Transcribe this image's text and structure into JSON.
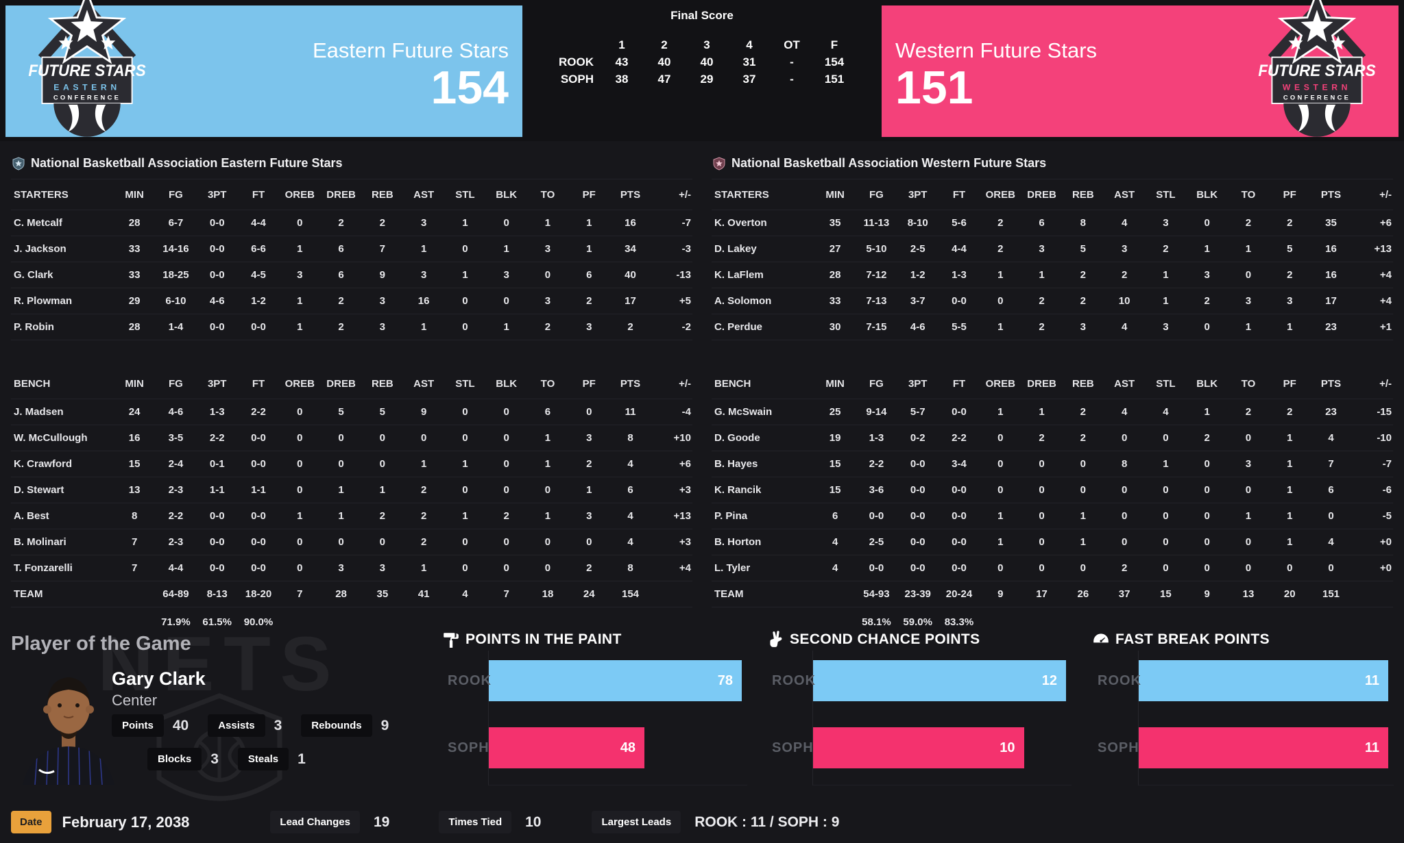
{
  "header": {
    "east": {
      "name": "Eastern Future Stars",
      "score": "154",
      "logo": {
        "line1": "FUTURE STARS",
        "line2": "EASTERN",
        "line3": "CONFERENCE"
      }
    },
    "west": {
      "name": "Western Future Stars",
      "score": "151",
      "logo": {
        "line1": "FUTURE STARS",
        "line2": "WESTERN",
        "line3": "CONFERENCE"
      }
    },
    "final_score": {
      "title": "Final Score",
      "columns": [
        "1",
        "2",
        "3",
        "4",
        "OT",
        "F"
      ],
      "rows": [
        {
          "team": "ROOK",
          "values": [
            "43",
            "40",
            "40",
            "31",
            "-",
            "154"
          ]
        },
        {
          "team": "SOPH",
          "values": [
            "38",
            "47",
            "29",
            "37",
            "-",
            "151"
          ]
        }
      ]
    }
  },
  "colors": {
    "east_primary": "#7cc4ec",
    "west_primary": "#f4417a",
    "east_bar": "#7ccaf5",
    "west_bar": "#f4326e",
    "date_badge": "#e9a13b"
  },
  "boxscores": [
    {
      "title": "National Basketball Association Eastern Future Stars",
      "groups": [
        "STARTERS",
        "BENCH"
      ],
      "columns": [
        "MIN",
        "FG",
        "3PT",
        "FT",
        "OREB",
        "DREB",
        "REB",
        "AST",
        "STL",
        "BLK",
        "TO",
        "PF",
        "PTS",
        "+/-"
      ],
      "starters": [
        {
          "name": "C. Metcalf",
          "cells": [
            "28",
            "6-7",
            "0-0",
            "4-4",
            "0",
            "2",
            "2",
            "3",
            "1",
            "0",
            "1",
            "1",
            "16",
            "-7"
          ]
        },
        {
          "name": "J. Jackson",
          "cells": [
            "33",
            "14-16",
            "0-0",
            "6-6",
            "1",
            "6",
            "7",
            "1",
            "0",
            "1",
            "3",
            "1",
            "34",
            "-3"
          ]
        },
        {
          "name": "G. Clark",
          "cells": [
            "33",
            "18-25",
            "0-0",
            "4-5",
            "3",
            "6",
            "9",
            "3",
            "1",
            "3",
            "0",
            "6",
            "40",
            "-13"
          ]
        },
        {
          "name": "R. Plowman",
          "cells": [
            "29",
            "6-10",
            "4-6",
            "1-2",
            "1",
            "2",
            "3",
            "16",
            "0",
            "0",
            "3",
            "2",
            "17",
            "+5"
          ]
        },
        {
          "name": "P. Robin",
          "cells": [
            "28",
            "1-4",
            "0-0",
            "0-0",
            "1",
            "2",
            "3",
            "1",
            "0",
            "1",
            "2",
            "3",
            "2",
            "-2"
          ]
        }
      ],
      "bench": [
        {
          "name": "J. Madsen",
          "cells": [
            "24",
            "4-6",
            "1-3",
            "2-2",
            "0",
            "5",
            "5",
            "9",
            "0",
            "0",
            "6",
            "0",
            "11",
            "-4"
          ]
        },
        {
          "name": "W. McCullough",
          "cells": [
            "16",
            "3-5",
            "2-2",
            "0-0",
            "0",
            "0",
            "0",
            "0",
            "0",
            "0",
            "1",
            "3",
            "8",
            "+10"
          ]
        },
        {
          "name": "K. Crawford",
          "cells": [
            "15",
            "2-4",
            "0-1",
            "0-0",
            "0",
            "0",
            "0",
            "1",
            "1",
            "0",
            "1",
            "2",
            "4",
            "+6"
          ]
        },
        {
          "name": "D. Stewart",
          "cells": [
            "13",
            "2-3",
            "1-1",
            "1-1",
            "0",
            "1",
            "1",
            "2",
            "0",
            "0",
            "0",
            "1",
            "6",
            "+3"
          ]
        },
        {
          "name": "A. Best",
          "cells": [
            "8",
            "2-2",
            "0-0",
            "0-0",
            "1",
            "1",
            "2",
            "2",
            "1",
            "2",
            "1",
            "3",
            "4",
            "+13"
          ]
        },
        {
          "name": "B. Molinari",
          "cells": [
            "7",
            "2-3",
            "0-0",
            "0-0",
            "0",
            "0",
            "0",
            "2",
            "0",
            "0",
            "0",
            "0",
            "4",
            "+3"
          ]
        },
        {
          "name": "T. Fonzarelli",
          "cells": [
            "7",
            "4-4",
            "0-0",
            "0-0",
            "0",
            "3",
            "3",
            "1",
            "0",
            "0",
            "0",
            "2",
            "8",
            "+4"
          ]
        }
      ],
      "team": {
        "name": "TEAM",
        "cells": [
          "",
          "64-89",
          "8-13",
          "18-20",
          "7",
          "28",
          "35",
          "41",
          "4",
          "7",
          "18",
          "24",
          "154",
          ""
        ]
      },
      "percentages": {
        "cells": [
          "",
          "71.9%",
          "61.5%",
          "90.0%",
          "",
          "",
          "",
          "",
          "",
          "",
          "",
          "",
          "",
          ""
        ]
      }
    },
    {
      "title": "National Basketball Association Western Future Stars",
      "groups": [
        "STARTERS",
        "BENCH"
      ],
      "columns": [
        "MIN",
        "FG",
        "3PT",
        "FT",
        "OREB",
        "DREB",
        "REB",
        "AST",
        "STL",
        "BLK",
        "TO",
        "PF",
        "PTS",
        "+/-"
      ],
      "starters": [
        {
          "name": "K. Overton",
          "cells": [
            "35",
            "11-13",
            "8-10",
            "5-6",
            "2",
            "6",
            "8",
            "4",
            "3",
            "0",
            "2",
            "2",
            "35",
            "+6"
          ]
        },
        {
          "name": "D. Lakey",
          "cells": [
            "27",
            "5-10",
            "2-5",
            "4-4",
            "2",
            "3",
            "5",
            "3",
            "2",
            "1",
            "1",
            "5",
            "16",
            "+13"
          ]
        },
        {
          "name": "K. LaFlem",
          "cells": [
            "28",
            "7-12",
            "1-2",
            "1-3",
            "1",
            "1",
            "2",
            "2",
            "1",
            "3",
            "0",
            "2",
            "16",
            "+4"
          ]
        },
        {
          "name": "A. Solomon",
          "cells": [
            "33",
            "7-13",
            "3-7",
            "0-0",
            "0",
            "2",
            "2",
            "10",
            "1",
            "2",
            "3",
            "3",
            "17",
            "+4"
          ]
        },
        {
          "name": "C. Perdue",
          "cells": [
            "30",
            "7-15",
            "4-6",
            "5-5",
            "1",
            "2",
            "3",
            "4",
            "3",
            "0",
            "1",
            "1",
            "23",
            "+1"
          ]
        }
      ],
      "bench": [
        {
          "name": "G. McSwain",
          "cells": [
            "25",
            "9-14",
            "5-7",
            "0-0",
            "1",
            "1",
            "2",
            "4",
            "4",
            "1",
            "2",
            "2",
            "23",
            "-15"
          ]
        },
        {
          "name": "D. Goode",
          "cells": [
            "19",
            "1-3",
            "0-2",
            "2-2",
            "0",
            "2",
            "2",
            "0",
            "0",
            "2",
            "0",
            "1",
            "4",
            "-10"
          ]
        },
        {
          "name": "B. Hayes",
          "cells": [
            "15",
            "2-2",
            "0-0",
            "3-4",
            "0",
            "0",
            "0",
            "8",
            "1",
            "0",
            "3",
            "1",
            "7",
            "-7"
          ]
        },
        {
          "name": "K. Rancik",
          "cells": [
            "15",
            "3-6",
            "0-0",
            "0-0",
            "0",
            "0",
            "0",
            "0",
            "0",
            "0",
            "0",
            "1",
            "6",
            "-6"
          ]
        },
        {
          "name": "P. Pina",
          "cells": [
            "6",
            "0-0",
            "0-0",
            "0-0",
            "1",
            "0",
            "1",
            "0",
            "0",
            "0",
            "1",
            "1",
            "0",
            "-5"
          ]
        },
        {
          "name": "B. Horton",
          "cells": [
            "4",
            "2-5",
            "0-0",
            "0-0",
            "1",
            "0",
            "1",
            "0",
            "0",
            "0",
            "0",
            "1",
            "4",
            "+0"
          ]
        },
        {
          "name": "L. Tyler",
          "cells": [
            "4",
            "0-0",
            "0-0",
            "0-0",
            "0",
            "0",
            "0",
            "2",
            "0",
            "0",
            "0",
            "0",
            "0",
            "+0"
          ]
        }
      ],
      "team": {
        "name": "TEAM",
        "cells": [
          "",
          "54-93",
          "23-39",
          "20-24",
          "9",
          "17",
          "26",
          "37",
          "15",
          "9",
          "13",
          "20",
          "151",
          ""
        ]
      },
      "percentages": {
        "cells": [
          "",
          "58.1%",
          "59.0%",
          "83.3%",
          "",
          "",
          "",
          "",
          "",
          "",
          "",
          "",
          "",
          ""
        ]
      }
    }
  ],
  "potg": {
    "section_title": "Player of the Game",
    "name": "Gary Clark",
    "position": "Center",
    "stats": [
      {
        "label": "Points",
        "value": "40"
      },
      {
        "label": "Assists",
        "value": "3"
      },
      {
        "label": "Rebounds",
        "value": "9"
      },
      {
        "label": "Blocks",
        "value": "3"
      },
      {
        "label": "Steals",
        "value": "1"
      }
    ]
  },
  "chart_data": [
    {
      "type": "bar",
      "orientation": "horizontal",
      "title": "POINTS IN THE PAINT",
      "icon": "paint-roller-icon",
      "categories": [
        "ROOK",
        "SOPH"
      ],
      "values": [
        78,
        48
      ],
      "bar_colors": [
        "#7ccaf5",
        "#f4326e"
      ],
      "value_labels": "inside-end",
      "legend": "none"
    },
    {
      "type": "bar",
      "orientation": "horizontal",
      "title": "SECOND CHANCE POINTS",
      "icon": "peace-hand-icon",
      "categories": [
        "ROOK",
        "SOPH"
      ],
      "values": [
        12,
        10
      ],
      "bar_colors": [
        "#7ccaf5",
        "#f4326e"
      ],
      "value_labels": "inside-end",
      "legend": "none"
    },
    {
      "type": "bar",
      "orientation": "horizontal",
      "title": "FAST BREAK POINTS",
      "icon": "speedometer-icon",
      "categories": [
        "ROOK",
        "SOPH"
      ],
      "values": [
        11,
        11
      ],
      "bar_colors": [
        "#7ccaf5",
        "#f4326e"
      ],
      "value_labels": "inside-end",
      "legend": "none"
    }
  ],
  "footer": {
    "date_label": "Date",
    "date_value": "February 17, 2038",
    "lead_changes_label": "Lead Changes",
    "lead_changes_value": "19",
    "times_tied_label": "Times Tied",
    "times_tied_value": "10",
    "largest_leads_label": "Largest Leads",
    "largest_leads_value": "ROOK : 11 / SOPH : 9"
  }
}
